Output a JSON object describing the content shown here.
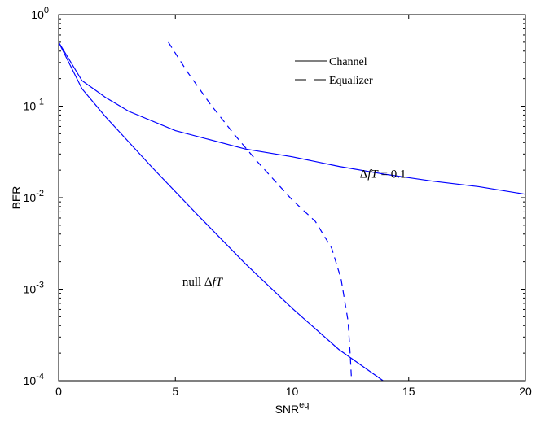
{
  "chart_data": {
    "type": "line",
    "title": "",
    "xlabel": "SNR",
    "xlabel_sup": "eq",
    "ylabel": "BER",
    "xlim": [
      0,
      20
    ],
    "ylim": [
      0.0001,
      1
    ],
    "yscale": "log",
    "grid": false,
    "legend_position": "top-center",
    "x_ticks": [
      0,
      5,
      10,
      15,
      20
    ],
    "x_tick_labels": [
      "0",
      "5",
      "10",
      "15",
      "20"
    ],
    "y_ticks": [
      0.0001,
      0.001,
      0.01,
      0.1,
      1
    ],
    "y_tick_labels": [
      {
        "base": "10",
        "exp": "-4"
      },
      {
        "base": "10",
        "exp": "-3"
      },
      {
        "base": "10",
        "exp": "-2"
      },
      {
        "base": "10",
        "exp": "-1"
      },
      {
        "base": "10",
        "exp": "0"
      }
    ],
    "legend": [
      {
        "label": "Channel",
        "style": "solid"
      },
      {
        "label": "Equalizer",
        "style": "dashed"
      }
    ],
    "annotations": [
      {
        "id": "delta",
        "parts": [
          {
            "text": "Δ",
            "italic": false
          },
          {
            "text": "fT",
            "italic": true
          },
          {
            "text": " = 0.1",
            "italic": false
          }
        ],
        "x": 12.9,
        "y": 0.0165
      },
      {
        "id": "null",
        "parts": [
          {
            "text": "null Δ",
            "italic": false
          },
          {
            "text": "fT",
            "italic": true
          }
        ],
        "x": 5.3,
        "y": 0.0011
      }
    ],
    "series": [
      {
        "style": "solid",
        "color": "#0000ff",
        "x": [
          0,
          1,
          2,
          3,
          5,
          8,
          10,
          12,
          14,
          16,
          18,
          20
        ],
        "y": [
          0.5,
          0.19,
          0.125,
          0.088,
          0.054,
          0.034,
          0.028,
          0.022,
          0.018,
          0.0152,
          0.0132,
          0.0109
        ]
      },
      {
        "style": "solid",
        "color": "#0000ff",
        "x": [
          0,
          1,
          2,
          4,
          6,
          8,
          10,
          12,
          13.9
        ],
        "y": [
          0.5,
          0.155,
          0.077,
          0.0215,
          0.0063,
          0.0019,
          0.00062,
          0.00022,
          0.0001
        ]
      },
      {
        "style": "dashed",
        "color": "#0000ff",
        "x": [
          4.7,
          5.5,
          6.5,
          7.5,
          8.5,
          10,
          11,
          11.7,
          12.1,
          12.4,
          12.5,
          12.55
        ],
        "y": [
          0.5,
          0.24,
          0.105,
          0.05,
          0.025,
          0.0095,
          0.0055,
          0.0028,
          0.0013,
          0.00045,
          0.00018,
          0.0001
        ]
      }
    ]
  }
}
